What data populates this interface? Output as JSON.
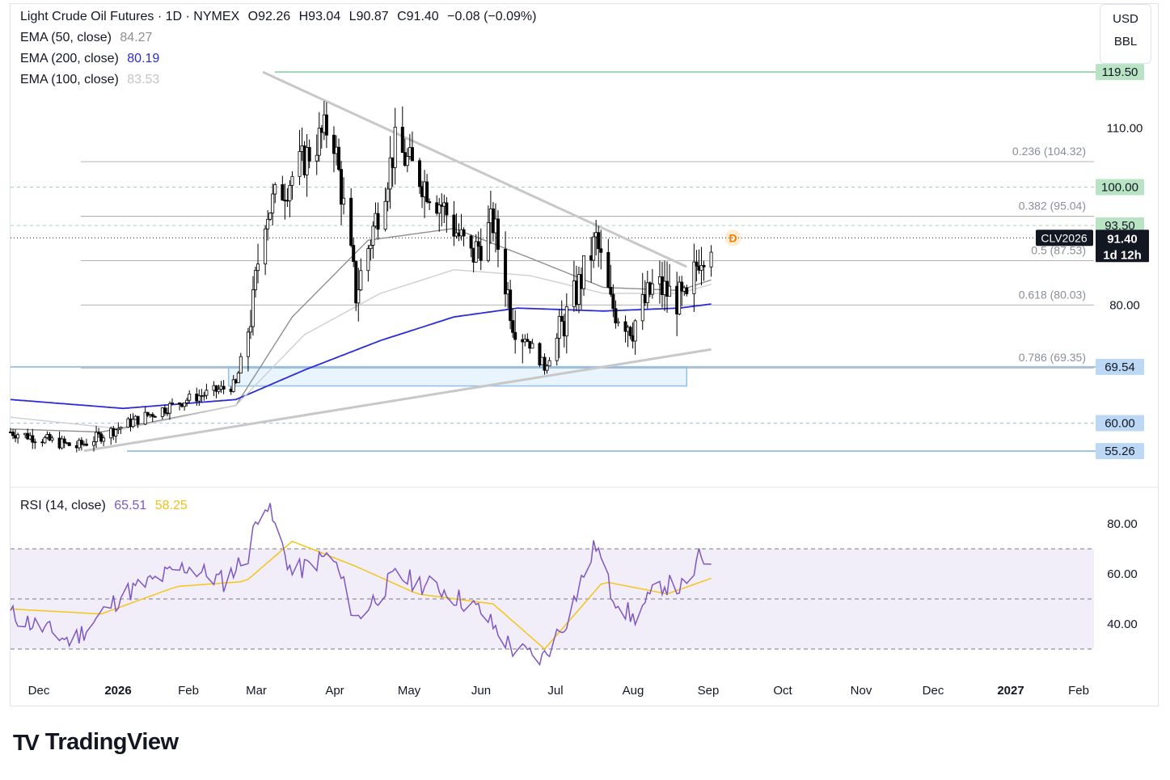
{
  "header": {
    "title": "Light Crude Oil Futures · 1D · NYMEX",
    "ohlc": [
      {
        "label": "O",
        "value": "92.26"
      },
      {
        "label": "H",
        "value": "93.04"
      },
      {
        "label": "L",
        "value": "90.87"
      },
      {
        "label": "C",
        "value": "91.40"
      }
    ],
    "change": "−0.08 (−0.09%)"
  },
  "indicators": [
    {
      "label": "EMA (50, close)",
      "value": "84.27",
      "color": "#8f8f8f"
    },
    {
      "label": "EMA (200, close)",
      "value": "80.19",
      "color": "#2b2bd9"
    },
    {
      "label": "EMA (100, close)",
      "value": "83.53",
      "color": "#cfcfcf"
    }
  ],
  "units": {
    "currency": "USD",
    "unit": "BBL"
  },
  "price_axis": {
    "ticks": [
      "110.00",
      "80.00"
    ],
    "levels": [
      {
        "value": 119.5,
        "label": "119.50",
        "color": "#b9e4c4"
      },
      {
        "value": 100.0,
        "label": "100.00",
        "color": "#b9e4c4"
      },
      {
        "value": 93.5,
        "label": "93.50",
        "color": "#b9e4c4"
      },
      {
        "value": 69.54,
        "label": "69.54",
        "color": "#bcd8f5"
      },
      {
        "value": 60.0,
        "label": "60.00",
        "color": "#bcd8f5"
      },
      {
        "value": 55.26,
        "label": "55.26",
        "color": "#bcd8f5"
      }
    ],
    "current": {
      "symbol": "CLV2026",
      "price": "91.40",
      "countdown": "1d 12h"
    }
  },
  "fibonacci": [
    {
      "label": "0.236 (104.32)",
      "value": 104.32
    },
    {
      "label": "0.382 (95.04)",
      "value": 95.04
    },
    {
      "label": "0.5 (87.53)",
      "value": 87.53
    },
    {
      "label": "0.618 (80.03)",
      "value": 80.03
    },
    {
      "label": "0.786 (69.35)",
      "value": 69.35
    }
  ],
  "rsi": {
    "label": "RSI (14, close)",
    "value": "65.51",
    "ma_value": "58.25",
    "color": "#7e57c2",
    "ma_color": "#f5c518",
    "ticks": [
      "80.00",
      "60.00",
      "40.00"
    ]
  },
  "time_axis": [
    "Dec",
    "2026",
    "Feb",
    "Mar",
    "Apr",
    "May",
    "Jun",
    "Jul",
    "Aug",
    "Sep",
    "Oct",
    "Nov",
    "Dec",
    "2027",
    "Feb"
  ],
  "event_marker": "D",
  "branding": {
    "mark": "TV",
    "name": "TradingView"
  },
  "chart_data": {
    "type": "candlestick",
    "title": "Light Crude Oil Futures · 1D · NYMEX",
    "x_type": "date",
    "x_range": [
      "2025-11-25",
      "2027-02-28"
    ],
    "ylim": [
      52,
      122
    ],
    "close_path": [
      {
        "date": "2025-11-25",
        "close": 58.5
      },
      {
        "date": "2025-12-22",
        "close": 56.0
      },
      {
        "date": "2026-01-15",
        "close": 60.5
      },
      {
        "date": "2026-02-05",
        "close": 64.0
      },
      {
        "date": "2026-02-25",
        "close": 66.5
      },
      {
        "date": "2026-03-04",
        "close": 80.0
      },
      {
        "date": "2026-03-08",
        "close": 95.0
      },
      {
        "date": "2026-04-05",
        "close": 111.0
      },
      {
        "date": "2026-04-15",
        "close": 82.0
      },
      {
        "date": "2026-05-01",
        "close": 107.0
      },
      {
        "date": "2026-05-20",
        "close": 97.0
      },
      {
        "date": "2026-06-01",
        "close": 88.0
      },
      {
        "date": "2026-06-10",
        "close": 94.0
      },
      {
        "date": "2026-06-18",
        "close": 78.0
      },
      {
        "date": "2026-07-01",
        "close": 69.5
      },
      {
        "date": "2026-07-12",
        "close": 80.0
      },
      {
        "date": "2026-07-22",
        "close": 91.0
      },
      {
        "date": "2026-07-28",
        "close": 80.0
      },
      {
        "date": "2026-08-06",
        "close": 76.5
      },
      {
        "date": "2026-08-15",
        "close": 83.5
      },
      {
        "date": "2026-08-28",
        "close": 80.0
      },
      {
        "date": "2026-09-02",
        "close": 88.5
      },
      {
        "date": "2026-09-07",
        "close": 91.4
      }
    ],
    "ema_series": [
      {
        "name": "EMA (50, close)",
        "last": 84.27,
        "points": [
          {
            "date": "2025-11-25",
            "y": 59
          },
          {
            "date": "2026-01-01",
            "y": 58.5
          },
          {
            "date": "2026-02-25",
            "y": 63
          },
          {
            "date": "2026-03-20",
            "y": 78
          },
          {
            "date": "2026-04-20",
            "y": 91
          },
          {
            "date": "2026-05-25",
            "y": 93
          },
          {
            "date": "2026-06-25",
            "y": 88
          },
          {
            "date": "2026-07-25",
            "y": 83
          },
          {
            "date": "2026-08-25",
            "y": 82.5
          },
          {
            "date": "2026-09-07",
            "y": 84.27
          }
        ]
      },
      {
        "name": "EMA (200, close)",
        "last": 80.19,
        "points": [
          {
            "date": "2025-11-25",
            "y": 64
          },
          {
            "date": "2026-01-10",
            "y": 62.5
          },
          {
            "date": "2026-02-25",
            "y": 64
          },
          {
            "date": "2026-03-25",
            "y": 69
          },
          {
            "date": "2026-04-25",
            "y": 74
          },
          {
            "date": "2026-05-25",
            "y": 78
          },
          {
            "date": "2026-06-20",
            "y": 79.5
          },
          {
            "date": "2026-07-25",
            "y": 79
          },
          {
            "date": "2026-08-25",
            "y": 79.5
          },
          {
            "date": "2026-09-07",
            "y": 80.19
          }
        ]
      },
      {
        "name": "EMA (100, close)",
        "last": 83.53,
        "points": [
          {
            "date": "2025-11-25",
            "y": 61
          },
          {
            "date": "2026-01-10",
            "y": 59
          },
          {
            "date": "2026-02-25",
            "y": 63
          },
          {
            "date": "2026-03-25",
            "y": 75
          },
          {
            "date": "2026-04-25",
            "y": 82
          },
          {
            "date": "2026-05-25",
            "y": 86
          },
          {
            "date": "2026-06-25",
            "y": 85
          },
          {
            "date": "2026-07-25",
            "y": 82
          },
          {
            "date": "2026-08-25",
            "y": 82
          },
          {
            "date": "2026-09-07",
            "y": 83.53
          }
        ]
      }
    ],
    "trendlines": [
      {
        "name": "descending",
        "points": [
          {
            "date": "2026-03-08",
            "y": 119.5
          },
          {
            "date": "2026-08-28",
            "y": 86.5
          }
        ]
      },
      {
        "name": "ascending",
        "points": [
          {
            "date": "2025-12-25",
            "y": 55.3
          },
          {
            "date": "2026-09-07",
            "y": 72.5
          }
        ]
      }
    ],
    "zone": {
      "from": "2026-02-22",
      "to": "2026-08-28",
      "y_low": 66.3,
      "y_high": 69.54
    },
    "rsi_series": {
      "ylim": [
        24,
        96
      ],
      "bands": [
        70,
        50,
        30
      ],
      "rsi": [
        {
          "date": "2025-11-25",
          "y": 44
        },
        {
          "date": "2025-12-20",
          "y": 33
        },
        {
          "date": "2026-01-10",
          "y": 52
        },
        {
          "date": "2026-02-05",
          "y": 63
        },
        {
          "date": "2026-02-20",
          "y": 57
        },
        {
          "date": "2026-03-02",
          "y": 68
        },
        {
          "date": "2026-03-08",
          "y": 92
        },
        {
          "date": "2026-03-20",
          "y": 60
        },
        {
          "date": "2026-04-05",
          "y": 68
        },
        {
          "date": "2026-04-15",
          "y": 42
        },
        {
          "date": "2026-05-01",
          "y": 59
        },
        {
          "date": "2026-05-20",
          "y": 54
        },
        {
          "date": "2026-06-05",
          "y": 45
        },
        {
          "date": "2026-06-18",
          "y": 30
        },
        {
          "date": "2026-06-30",
          "y": 26
        },
        {
          "date": "2026-07-10",
          "y": 42
        },
        {
          "date": "2026-07-22",
          "y": 72
        },
        {
          "date": "2026-07-28",
          "y": 53
        },
        {
          "date": "2026-08-06",
          "y": 42
        },
        {
          "date": "2026-08-18",
          "y": 56
        },
        {
          "date": "2026-08-28",
          "y": 54
        },
        {
          "date": "2026-09-02",
          "y": 66
        },
        {
          "date": "2026-09-07",
          "y": 65.51
        }
      ],
      "ma": [
        {
          "date": "2025-11-25",
          "y": 46
        },
        {
          "date": "2026-01-01",
          "y": 44
        },
        {
          "date": "2026-02-01",
          "y": 55
        },
        {
          "date": "2026-03-01",
          "y": 57
        },
        {
          "date": "2026-03-20",
          "y": 73
        },
        {
          "date": "2026-04-15",
          "y": 63
        },
        {
          "date": "2026-05-10",
          "y": 52
        },
        {
          "date": "2026-06-10",
          "y": 48
        },
        {
          "date": "2026-07-01",
          "y": 30
        },
        {
          "date": "2026-07-25",
          "y": 57
        },
        {
          "date": "2026-08-20",
          "y": 52
        },
        {
          "date": "2026-09-07",
          "y": 58.25
        }
      ]
    }
  }
}
